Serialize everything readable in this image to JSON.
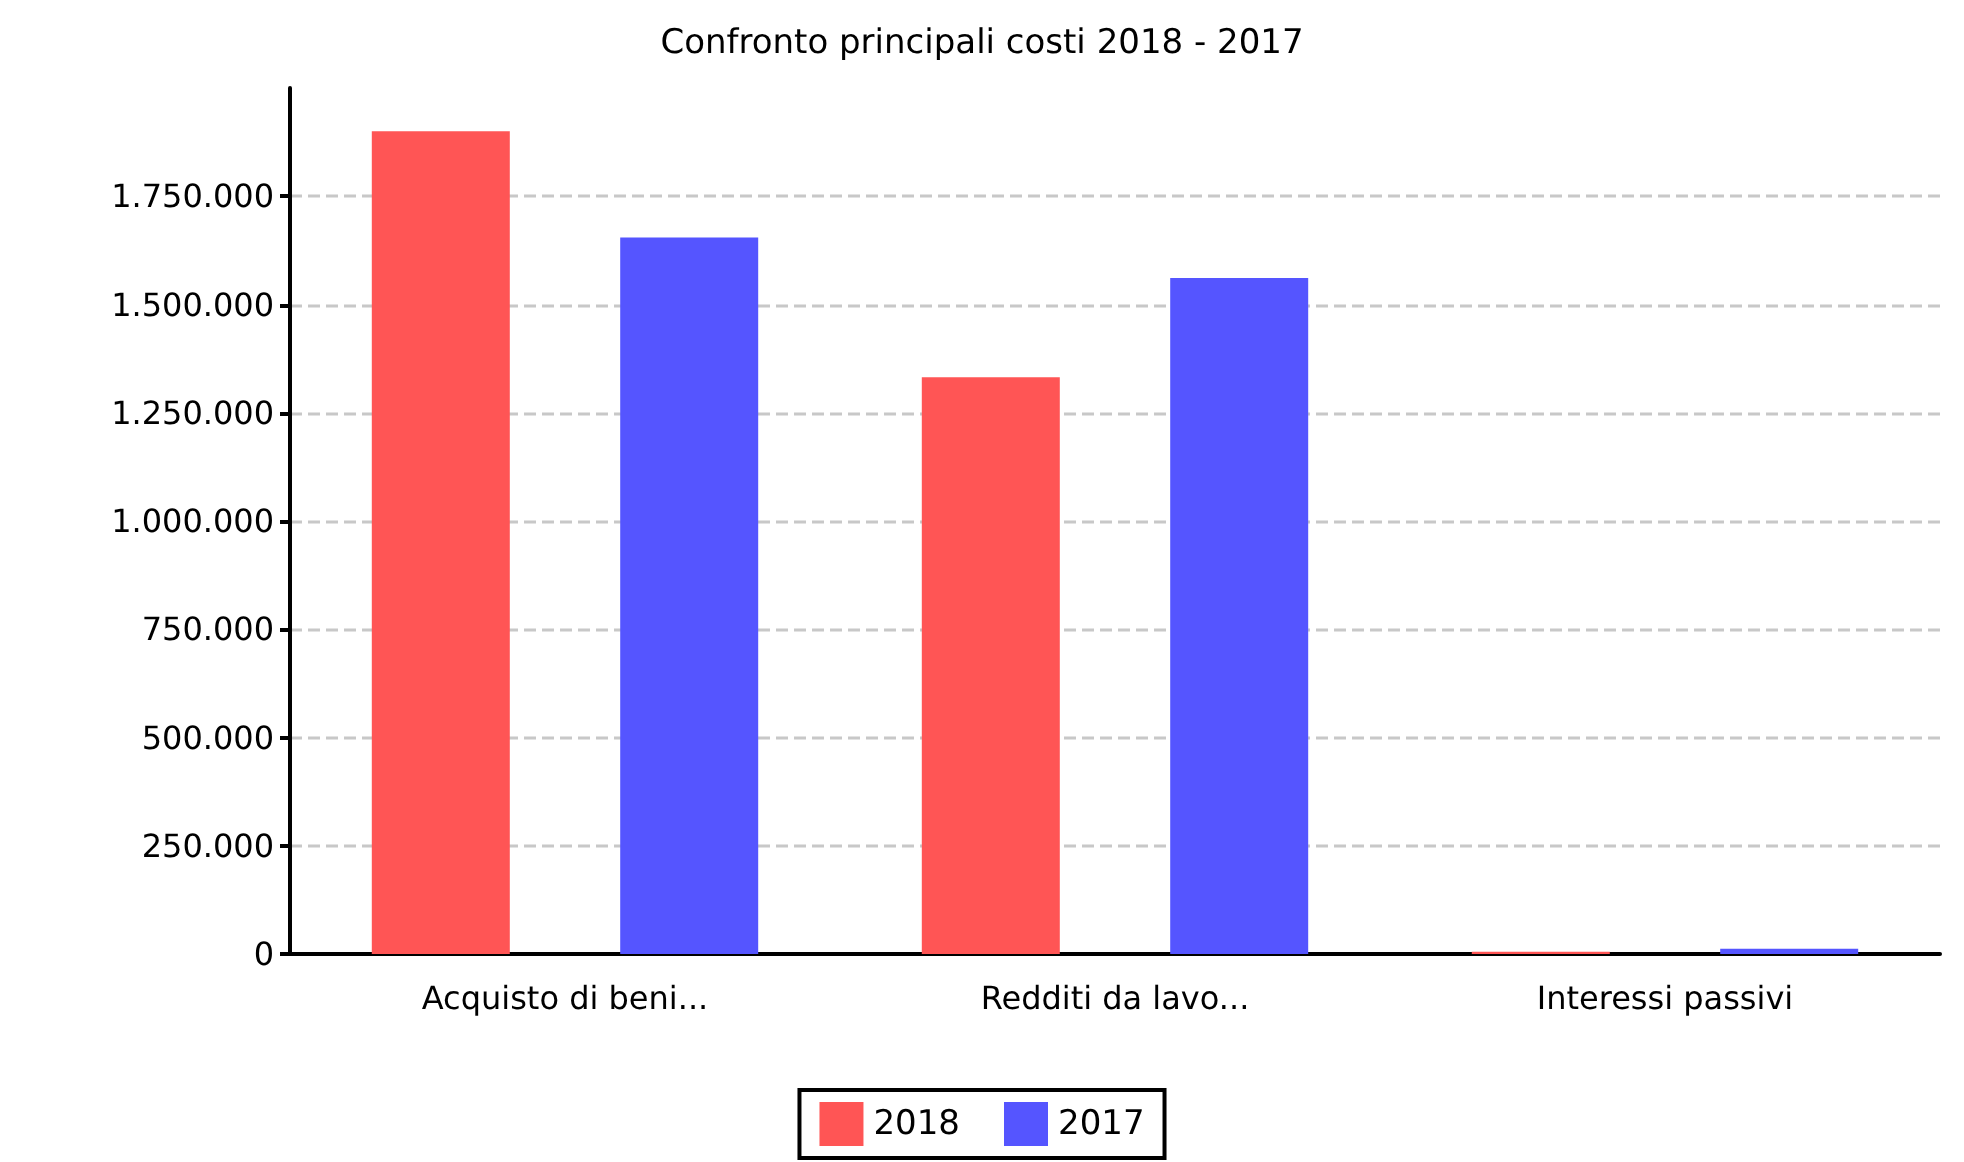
{
  "chart_data": {
    "type": "bar",
    "title": "Confronto principali costi 2018 - 2017",
    "categories": [
      "Acquisto di beni...",
      "Redditi da lavo...",
      "Interessi passivi"
    ],
    "series": [
      {
        "name": "2018",
        "color": "#ff5555",
        "values": [
          1900000,
          1332000,
          5000
        ]
      },
      {
        "name": "2017",
        "color": "#5555ff",
        "values": [
          1655000,
          1561000,
          12000
        ]
      }
    ],
    "ylim": [
      0,
      2000000
    ],
    "yticks": [
      0,
      {
        "value": 250000,
        "label": "250.000"
      },
      {
        "value": 500000,
        "label": "500.000"
      },
      {
        "value": 750000,
        "label": "750.000"
      },
      {
        "value": 1000000,
        "label": "1.000.000"
      },
      {
        "value": 1250000,
        "label": "1.250.000"
      },
      {
        "value": 1500000,
        "label": "1.500.000"
      },
      {
        "value": 1750000,
        "label": "1.750.000"
      }
    ],
    "grid": "y",
    "legend": "bottom"
  }
}
